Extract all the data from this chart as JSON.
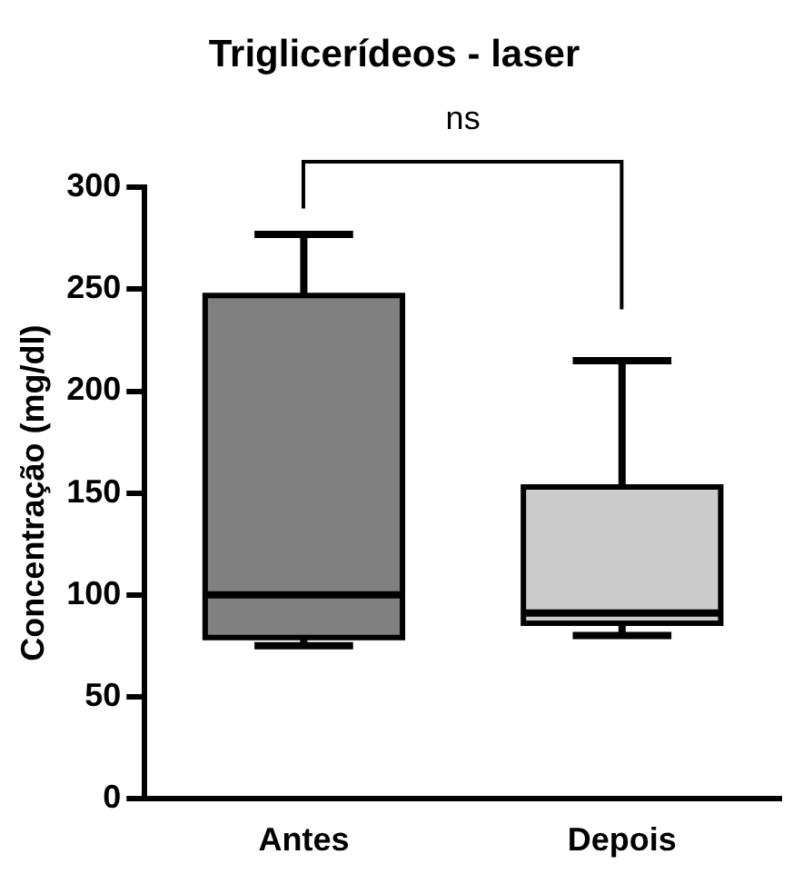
{
  "chart_data": {
    "type": "box",
    "title": "Triglicerídeos - laser",
    "ylabel": "Concentração (mg/dl)",
    "categories": [
      "Antes",
      "Depois"
    ],
    "boxes": [
      {
        "low": 75,
        "q1": 79,
        "median": 100,
        "q3": 247,
        "high": 277
      },
      {
        "low": 80,
        "q1": 86,
        "median": 91,
        "q3": 153,
        "high": 215
      }
    ],
    "colors": [
      "#808080",
      "#cccccc"
    ],
    "ylim": [
      0,
      300
    ],
    "yticks": [
      0,
      50,
      100,
      150,
      200,
      250,
      300
    ],
    "grid": false,
    "legend": false,
    "annotations": [
      "ns"
    ]
  }
}
